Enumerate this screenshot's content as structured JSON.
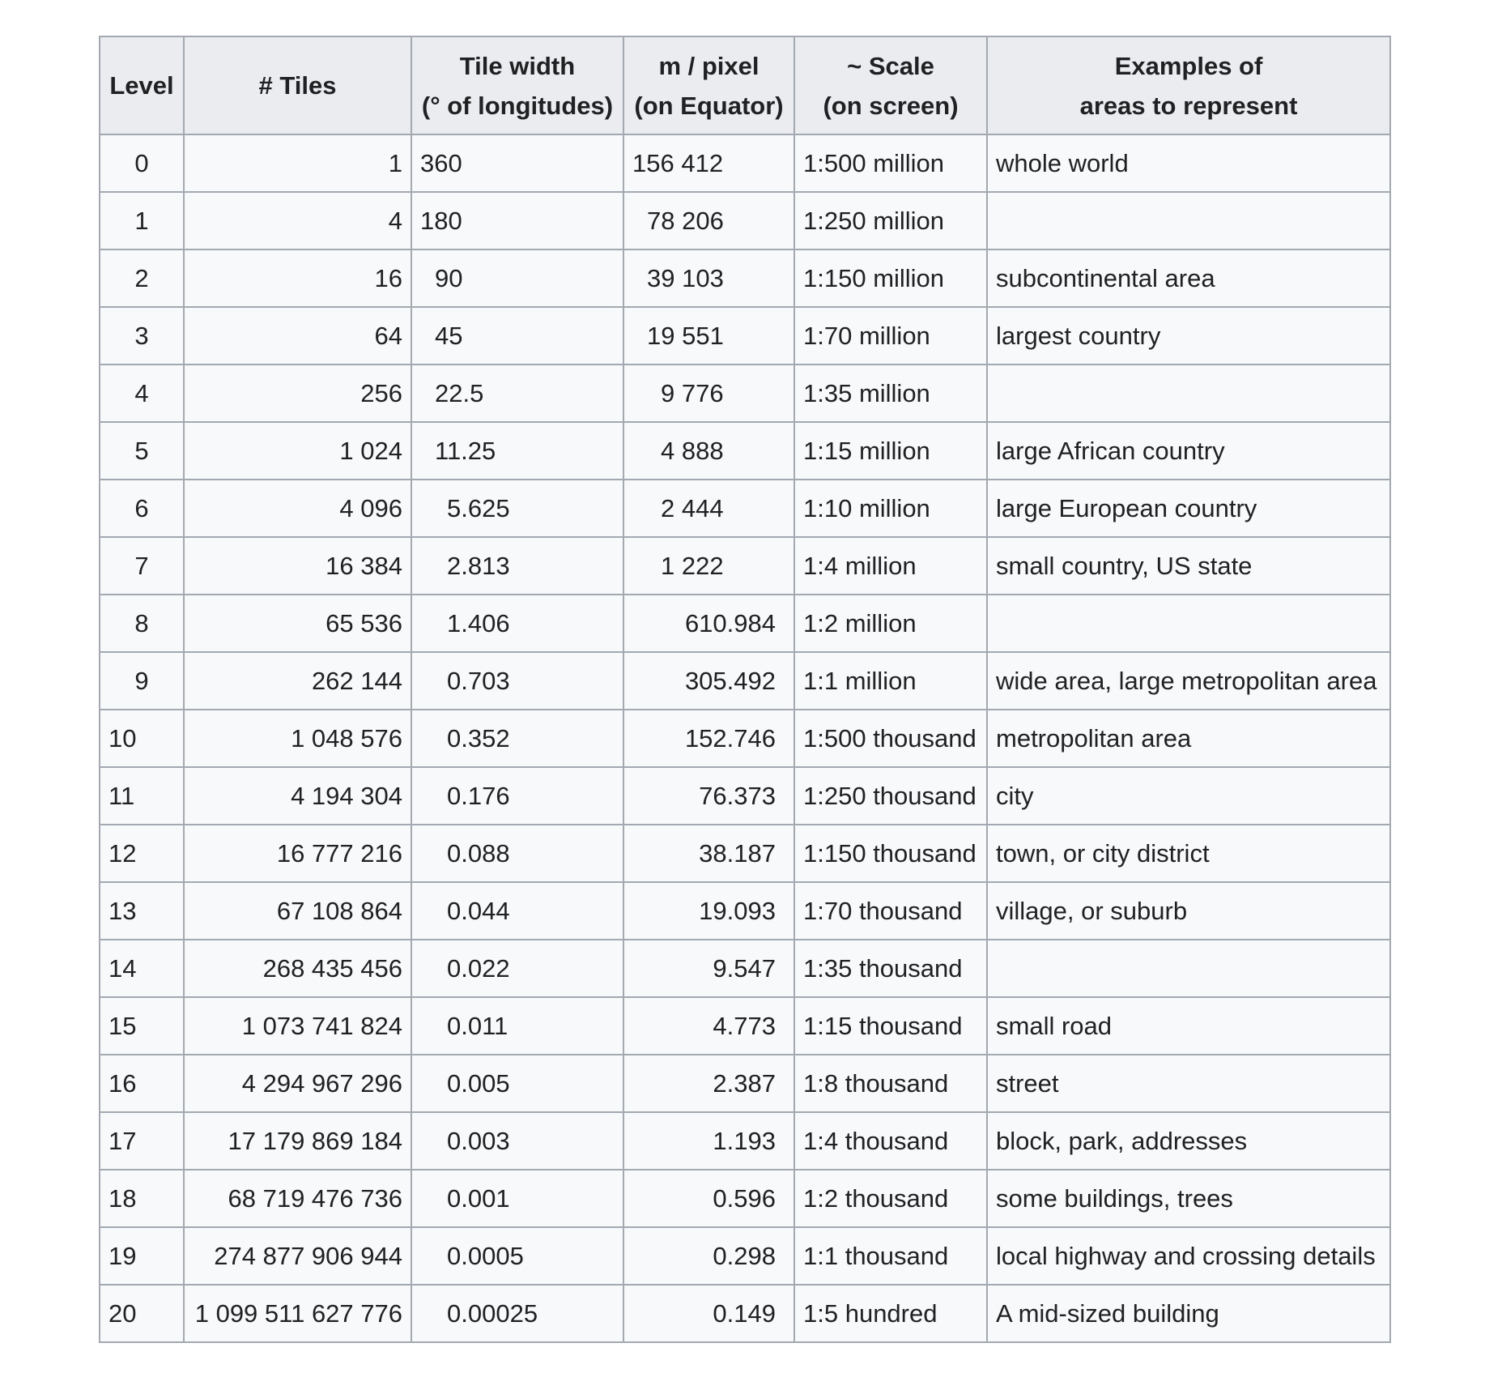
{
  "table": {
    "headers": [
      {
        "lines": [
          "Level"
        ]
      },
      {
        "lines": [
          "# Tiles"
        ]
      },
      {
        "lines": [
          "Tile width",
          "(° of longitudes)"
        ]
      },
      {
        "lines": [
          "m / pixel",
          "(on Equator)"
        ]
      },
      {
        "lines": [
          "~ Scale",
          "(on screen)"
        ]
      },
      {
        "lines": [
          "Examples of",
          "areas to represent"
        ]
      }
    ],
    "rows": [
      {
        "level": "0",
        "tiles": "1",
        "width": "360",
        "mpx": "156 412",
        "scale": "1:500 million",
        "examples": "whole world"
      },
      {
        "level": "1",
        "tiles": "4",
        "width": "180",
        "mpx": "78 206",
        "scale": "1:250 million",
        "examples": ""
      },
      {
        "level": "2",
        "tiles": "16",
        "width": "90",
        "mpx": "39 103",
        "scale": "1:150 million",
        "examples": "subcontinental area"
      },
      {
        "level": "3",
        "tiles": "64",
        "width": "45",
        "mpx": "19 551",
        "scale": "1:70 million",
        "examples": "largest country"
      },
      {
        "level": "4",
        "tiles": "256",
        "width": "22.5",
        "mpx": "9 776",
        "scale": "1:35 million",
        "examples": ""
      },
      {
        "level": "5",
        "tiles": "1 024",
        "width": "11.25",
        "mpx": "4 888",
        "scale": "1:15 million",
        "examples": "large African country"
      },
      {
        "level": "6",
        "tiles": "4 096",
        "width": "5.625",
        "mpx": "2 444",
        "scale": "1:10 million",
        "examples": "large European country"
      },
      {
        "level": "7",
        "tiles": "16 384",
        "width": "2.813",
        "mpx": "1 222",
        "scale": "1:4 million",
        "examples": "small country, US state"
      },
      {
        "level": "8",
        "tiles": "65 536",
        "width": "1.406",
        "mpx": "610.984",
        "scale": "1:2 million",
        "examples": ""
      },
      {
        "level": "9",
        "tiles": "262 144",
        "width": "0.703",
        "mpx": "305.492",
        "scale": "1:1 million",
        "examples": "wide area, large metropolitan area"
      },
      {
        "level": "10",
        "tiles": "1 048 576",
        "width": "0.352",
        "mpx": "152.746",
        "scale": "1:500 thousand",
        "examples": "metropolitan area"
      },
      {
        "level": "11",
        "tiles": "4 194 304",
        "width": "0.176",
        "mpx": "76.373",
        "scale": "1:250 thousand",
        "examples": "city"
      },
      {
        "level": "12",
        "tiles": "16 777 216",
        "width": "0.088",
        "mpx": "38.187",
        "scale": "1:150 thousand",
        "examples": "town, or city district"
      },
      {
        "level": "13",
        "tiles": "67 108 864",
        "width": "0.044",
        "mpx": "19.093",
        "scale": "1:70 thousand",
        "examples": "village, or suburb"
      },
      {
        "level": "14",
        "tiles": "268 435 456",
        "width": "0.022",
        "mpx": "9.547",
        "scale": "1:35 thousand",
        "examples": ""
      },
      {
        "level": "15",
        "tiles": "1 073 741 824",
        "width": "0.011",
        "mpx": "4.773",
        "scale": "1:15 thousand",
        "examples": "small road"
      },
      {
        "level": "16",
        "tiles": "4 294 967 296",
        "width": "0.005",
        "mpx": "2.387",
        "scale": "1:8 thousand",
        "examples": "street"
      },
      {
        "level": "17",
        "tiles": "17 179 869 184",
        "width": "0.003",
        "mpx": "1.193",
        "scale": "1:4 thousand",
        "examples": "block, park, addresses"
      },
      {
        "level": "18",
        "tiles": "68 719 476 736",
        "width": "0.001",
        "mpx": "0.596",
        "scale": "1:2 thousand",
        "examples": "some buildings, trees"
      },
      {
        "level": "19",
        "tiles": "274 877 906 944",
        "width": "0.0005",
        "mpx": "0.298",
        "scale": "1:1 thousand",
        "examples": "local highway and crossing details"
      },
      {
        "level": "20",
        "tiles": "1 099 511 627 776",
        "width": "0.00025",
        "mpx": "0.149",
        "scale": "1:5 hundred",
        "examples": "A mid-sized building"
      }
    ]
  }
}
